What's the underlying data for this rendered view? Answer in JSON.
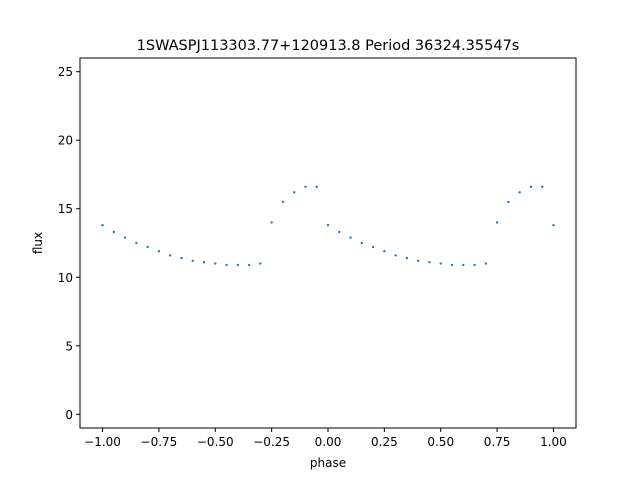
{
  "chart_data": {
    "type": "scatter",
    "title": "1SWASPJ113303.77+120913.8 Period 36324.35547s",
    "xlabel": "phase",
    "ylabel": "flux",
    "xlim": [
      -1.1,
      1.1
    ],
    "ylim": [
      -1.0,
      26.0
    ],
    "x_ticks": [
      -1.0,
      -0.75,
      -0.5,
      -0.25,
      0.0,
      0.25,
      0.5,
      0.75,
      1.0
    ],
    "x_tick_labels": [
      "−1.00",
      "−0.75",
      "−0.50",
      "−0.25",
      "0.00",
      "0.25",
      "0.50",
      "0.75",
      "1.00"
    ],
    "y_ticks": [
      0,
      5,
      10,
      15,
      20,
      25
    ],
    "y_tick_labels": [
      "0",
      "5",
      "10",
      "15",
      "20",
      "25"
    ],
    "grid": false,
    "legend": "none",
    "marker_color": "#1f77b4",
    "series": [
      {
        "points": [
          [
            -1.0,
            13.8
          ],
          [
            -0.95,
            13.3
          ],
          [
            -0.9,
            12.9
          ],
          [
            -0.85,
            12.5
          ],
          [
            -0.8,
            12.2
          ],
          [
            -0.75,
            11.9
          ],
          [
            -0.7,
            11.6
          ],
          [
            -0.65,
            11.4
          ],
          [
            -0.6,
            11.2
          ],
          [
            -0.55,
            11.1
          ],
          [
            -0.5,
            11.0
          ],
          [
            -0.45,
            10.9
          ],
          [
            -0.4,
            10.9
          ],
          [
            -0.35,
            10.9
          ],
          [
            -0.3,
            11.0
          ],
          [
            -0.25,
            14.0
          ],
          [
            -0.2,
            15.5
          ],
          [
            -0.15,
            16.2
          ],
          [
            -0.1,
            16.6
          ],
          [
            -0.05,
            16.6
          ],
          [
            0.0,
            13.8
          ],
          [
            0.05,
            13.3
          ],
          [
            0.1,
            12.9
          ],
          [
            0.15,
            12.5
          ],
          [
            0.2,
            12.2
          ],
          [
            0.25,
            11.9
          ],
          [
            0.3,
            11.6
          ],
          [
            0.35,
            11.4
          ],
          [
            0.4,
            11.2
          ],
          [
            0.45,
            11.1
          ],
          [
            0.5,
            11.0
          ],
          [
            0.55,
            10.9
          ],
          [
            0.6,
            10.9
          ],
          [
            0.65,
            10.9
          ],
          [
            0.7,
            11.0
          ],
          [
            0.75,
            14.0
          ],
          [
            0.8,
            15.5
          ],
          [
            0.85,
            16.2
          ],
          [
            0.9,
            16.6
          ],
          [
            0.95,
            16.6
          ],
          [
            1.0,
            13.8
          ]
        ]
      }
    ]
  }
}
